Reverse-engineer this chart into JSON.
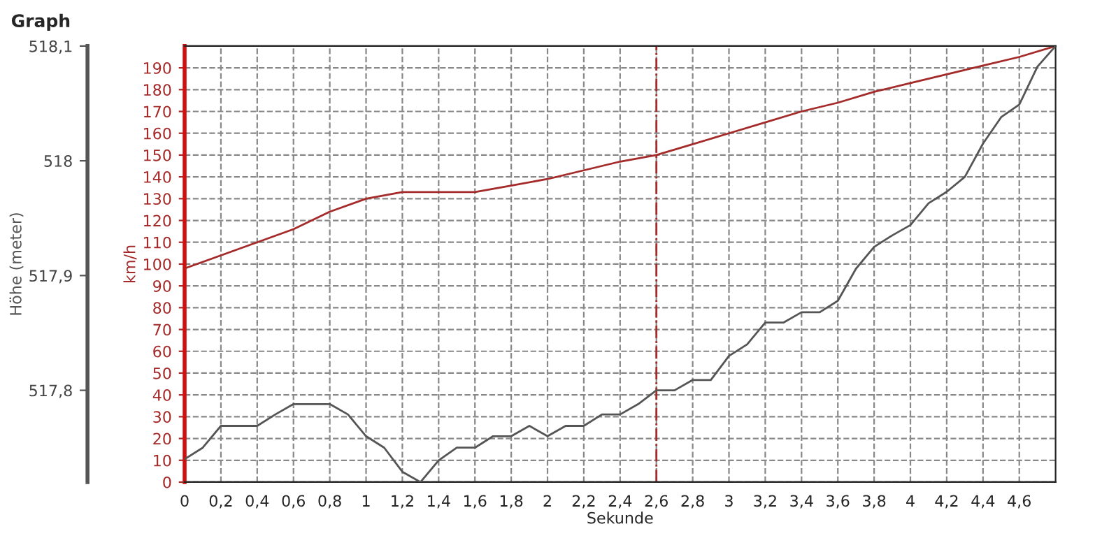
{
  "chart_data": {
    "type": "line",
    "title": "Graph",
    "xlabel": "Sekunde",
    "ylabel": "km/h",
    "y2label": "Höhe (meter)",
    "series": [
      {
        "color": "#a52a2a",
        "axis": "y",
        "x": [
          0,
          0.2,
          0.4,
          0.6,
          0.8,
          1.0,
          1.2,
          1.4,
          1.6,
          1.8,
          2.0,
          2.2,
          2.4,
          2.6,
          2.8,
          3.0,
          3.2,
          3.4,
          3.6,
          3.8,
          4.0,
          4.2,
          4.4,
          4.6,
          4.8
        ],
        "values": [
          98,
          104,
          110,
          116,
          124,
          130,
          133,
          133,
          133,
          136,
          139,
          143,
          147,
          150,
          155,
          160,
          165,
          170,
          174,
          179,
          183,
          187,
          191,
          195,
          200
        ]
      },
      {
        "color": "#555555",
        "axis": "y2",
        "x": [
          0,
          0.1,
          0.2,
          0.4,
          0.5,
          0.6,
          0.8,
          0.9,
          1.0,
          1.1,
          1.2,
          1.3,
          1.4,
          1.5,
          1.6,
          1.7,
          1.8,
          1.9,
          2.0,
          2.1,
          2.2,
          2.3,
          2.4,
          2.5,
          2.6,
          2.7,
          2.8,
          2.9,
          3.0,
          3.1,
          3.2,
          3.3,
          3.4,
          3.5,
          3.6,
          3.7,
          3.8,
          3.9,
          4.0,
          4.1,
          4.2,
          4.3,
          4.4,
          4.5,
          4.6,
          4.7,
          4.8
        ],
        "values": [
          517.74,
          517.75,
          517.769,
          517.769,
          517.779,
          517.788,
          517.788,
          517.779,
          517.76,
          517.75,
          517.729,
          517.72,
          517.739,
          517.75,
          517.75,
          517.76,
          517.76,
          517.769,
          517.76,
          517.769,
          517.769,
          517.779,
          517.779,
          517.788,
          517.8,
          517.8,
          517.809,
          517.809,
          517.83,
          517.84,
          517.859,
          517.859,
          517.868,
          517.868,
          517.878,
          517.906,
          517.925,
          517.935,
          517.944,
          517.963,
          517.973,
          517.986,
          518.015,
          518.038,
          518.049,
          518.082,
          518.1
        ]
      }
    ],
    "xlim": [
      0,
      4.8
    ],
    "xticks": [
      0,
      {
        "value": 0.2,
        "label": "0,2"
      },
      {
        "value": 0.4,
        "label": "0,4"
      },
      {
        "value": 0.6,
        "label": "0,6"
      },
      {
        "value": 0.8,
        "label": "0,8"
      },
      1,
      {
        "value": 1.2,
        "label": "1,2"
      },
      {
        "value": 1.4,
        "label": "1,4"
      },
      {
        "value": 1.6,
        "label": "1,6"
      },
      {
        "value": 1.8,
        "label": "1,8"
      },
      2,
      {
        "value": 2.2,
        "label": "2,2"
      },
      {
        "value": 2.4,
        "label": "2,4"
      },
      {
        "value": 2.6,
        "label": "2,6"
      },
      {
        "value": 2.8,
        "label": "2,8"
      },
      3,
      {
        "value": 3.2,
        "label": "3,2"
      },
      {
        "value": 3.4,
        "label": "3,4"
      },
      {
        "value": 3.6,
        "label": "3,6"
      },
      {
        "value": 3.8,
        "label": "3,8"
      },
      4,
      {
        "value": 4.2,
        "label": "4,2"
      },
      {
        "value": 4.4,
        "label": "4,4"
      },
      {
        "value": 4.6,
        "label": "4,6"
      }
    ],
    "ylim": [
      0,
      200
    ],
    "yticks": [
      0,
      10,
      20,
      30,
      40,
      50,
      60,
      70,
      80,
      90,
      100,
      110,
      120,
      130,
      140,
      150,
      160,
      170,
      180,
      190
    ],
    "y2lim": [
      517.72,
      518.1
    ],
    "y2ticks": [
      {
        "value": 517.8,
        "label": "517,8"
      },
      {
        "value": 517.9,
        "label": "517,9"
      },
      518,
      {
        "value": 518.1,
        "label": "518,1"
      }
    ],
    "ref_lines": [
      {
        "axis": "x",
        "value": 2.6,
        "color": "#a52a2a",
        "line_style": "dashdot"
      }
    ],
    "grid": true,
    "marker": "none",
    "line_style": "solid",
    "legend": false
  }
}
